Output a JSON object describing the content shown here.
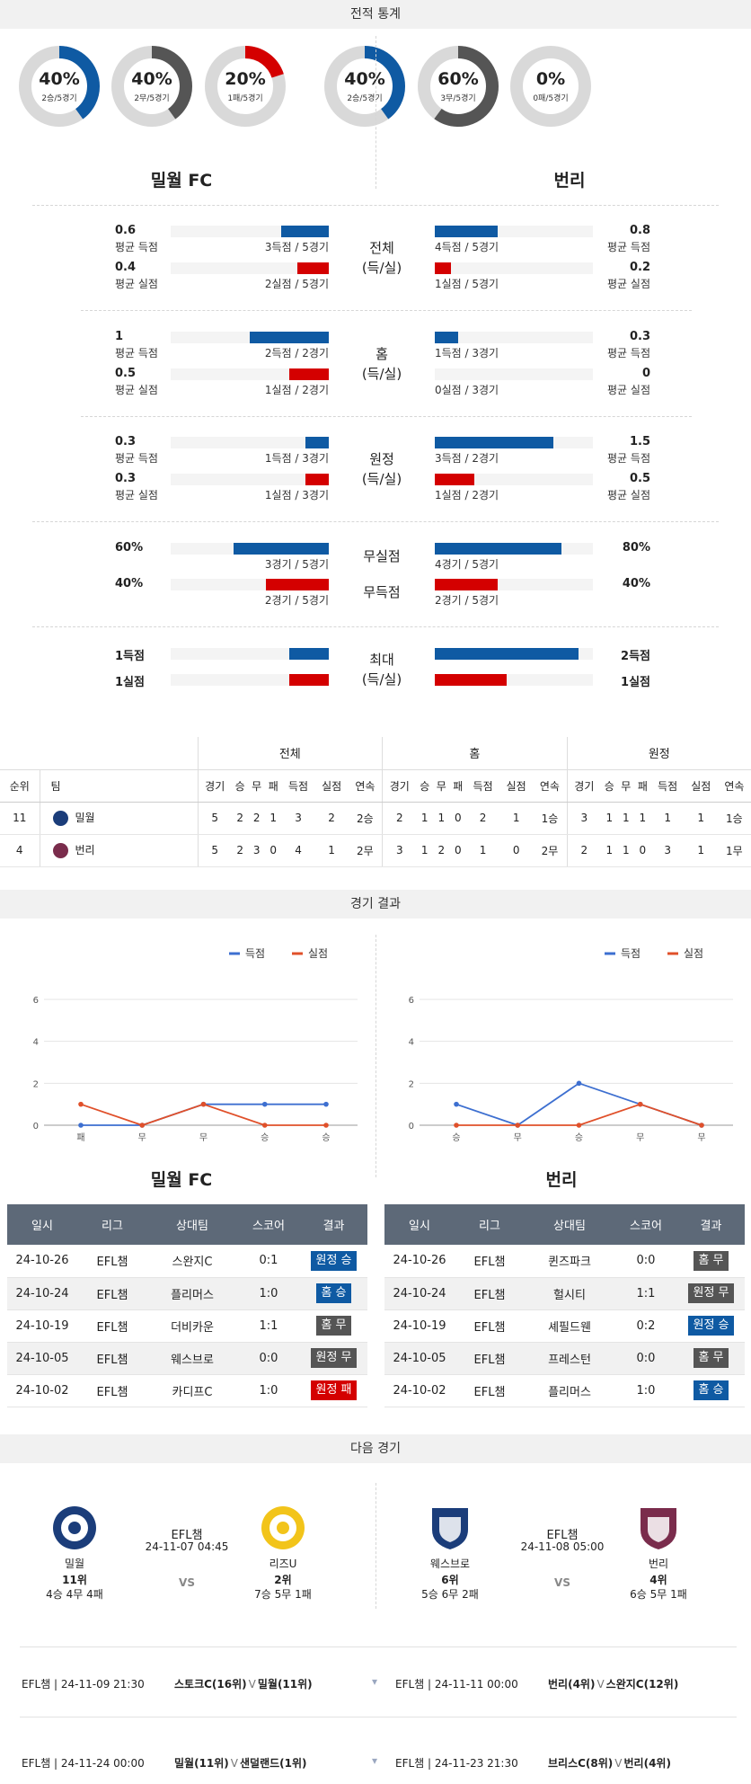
{
  "sections": {
    "stats": "전적 통계",
    "results": "경기 결과",
    "next": "다음 경기"
  },
  "donuts": [
    {
      "pct": "40%",
      "sub": "2승/5경기",
      "value": 0.4,
      "color": "#0f5aa3"
    },
    {
      "pct": "40%",
      "sub": "2무/5경기",
      "value": 0.4,
      "color": "#555555"
    },
    {
      "pct": "20%",
      "sub": "1패/5경기",
      "value": 0.2,
      "color": "#d40000"
    },
    {
      "pct": "40%",
      "sub": "2승/5경기",
      "value": 0.4,
      "color": "#0f5aa3"
    },
    {
      "pct": "60%",
      "sub": "3무/5경기",
      "value": 0.6,
      "color": "#555555"
    },
    {
      "pct": "0%",
      "sub": "0패/5경기",
      "value": 0.0,
      "color": "#d40000"
    }
  ],
  "teams": {
    "home": "밀월 FC",
    "away": "번리"
  },
  "stat_groups": [
    {
      "label": "전체\n(득/실)",
      "rows": [
        {
          "left_num": "0.6",
          "left_lab": "평균 득점",
          "left_cnt": "3득점 / 5경기",
          "left_val": 0.6,
          "right_num": "0.8",
          "right_lab": "평균 득점",
          "right_cnt": "4득점 / 5경기",
          "right_val": 0.8,
          "color": "blue"
        },
        {
          "left_num": "0.4",
          "left_lab": "평균 실점",
          "left_cnt": "2실점 / 5경기",
          "left_val": 0.4,
          "right_num": "0.2",
          "right_lab": "평균 실점",
          "right_cnt": "1실점 / 5경기",
          "right_val": 0.2,
          "color": "red"
        }
      ]
    },
    {
      "label": "홈\n(득/실)",
      "rows": [
        {
          "left_num": "1",
          "left_lab": "평균 득점",
          "left_cnt": "2득점 / 2경기",
          "left_val": 1.0,
          "right_num": "0.3",
          "right_lab": "평균 득점",
          "right_cnt": "1득점 / 3경기",
          "right_val": 0.3,
          "color": "blue"
        },
        {
          "left_num": "0.5",
          "left_lab": "평균 실점",
          "left_cnt": "1실점 / 2경기",
          "left_val": 0.5,
          "right_num": "0",
          "right_lab": "평균 실점",
          "right_cnt": "0실점 / 3경기",
          "right_val": 0.0,
          "color": "red"
        }
      ]
    },
    {
      "label": "원정\n(득/실)",
      "rows": [
        {
          "left_num": "0.3",
          "left_lab": "평균 득점",
          "left_cnt": "1득점 / 3경기",
          "left_val": 0.3,
          "right_num": "1.5",
          "right_lab": "평균 득점",
          "right_cnt": "3득점 / 2경기",
          "right_val": 1.5,
          "color": "blue"
        },
        {
          "left_num": "0.3",
          "left_lab": "평균 실점",
          "left_cnt": "1실점 / 3경기",
          "left_val": 0.3,
          "right_num": "0.5",
          "right_lab": "평균 실점",
          "right_cnt": "1실점 / 2경기",
          "right_val": 0.5,
          "color": "red"
        }
      ]
    }
  ],
  "clean": {
    "rows": [
      {
        "label": "무실점",
        "left_num": "60%",
        "left_cnt": "3경기 / 5경기",
        "left_val": 0.6,
        "right_num": "80%",
        "right_cnt": "4경기 / 5경기",
        "right_val": 0.8,
        "color": "blue"
      },
      {
        "label": "무득점",
        "left_num": "40%",
        "left_cnt": "2경기 / 5경기",
        "left_val": 0.4,
        "right_num": "40%",
        "right_cnt": "2경기 / 5경기",
        "right_val": 0.4,
        "color": "red"
      }
    ]
  },
  "max": {
    "label": "최대\n(득/실)",
    "rows": [
      {
        "left_num": "1득점",
        "left_val": 1,
        "right_num": "2득점",
        "right_val": 2,
        "color": "blue"
      },
      {
        "left_num": "1실점",
        "left_val": 1,
        "right_num": "1실점",
        "right_val": 1,
        "color": "red"
      }
    ]
  },
  "standings": {
    "groups": [
      "전체",
      "홈",
      "원정"
    ],
    "rank_header": "순위",
    "team_header": "팀",
    "cols": [
      "경기",
      "승",
      "무",
      "패",
      "득점",
      "실점",
      "연속"
    ],
    "rows": [
      {
        "rank": "11",
        "team": "밀월",
        "icon_color": "#1b3d7a",
        "all": [
          "5",
          "2",
          "2",
          "1",
          "3",
          "2",
          "2승"
        ],
        "home": [
          "2",
          "1",
          "1",
          "0",
          "2",
          "1",
          "1승"
        ],
        "away": [
          "3",
          "1",
          "1",
          "1",
          "1",
          "1",
          "1승"
        ]
      },
      {
        "rank": "4",
        "team": "번리",
        "icon_color": "#7a2c4c",
        "all": [
          "5",
          "2",
          "3",
          "0",
          "4",
          "1",
          "2무"
        ],
        "home": [
          "3",
          "1",
          "2",
          "0",
          "1",
          "0",
          "2무"
        ],
        "away": [
          "2",
          "1",
          "1",
          "0",
          "3",
          "1",
          "1무"
        ]
      }
    ]
  },
  "chart_data": [
    {
      "type": "line",
      "categories": [
        "패",
        "무",
        "무",
        "승",
        "승"
      ],
      "series": [
        {
          "name": "득점",
          "values": [
            0,
            0,
            1,
            1,
            1
          ],
          "color": "#3d6fd0"
        },
        {
          "name": "실점",
          "values": [
            1,
            0,
            1,
            0,
            0
          ],
          "color": "#e0502a"
        }
      ],
      "yticks": [
        0,
        2,
        4,
        6
      ],
      "ylim": [
        0,
        6
      ],
      "legend": "top-right"
    },
    {
      "type": "line",
      "categories": [
        "승",
        "무",
        "승",
        "무",
        "무"
      ],
      "series": [
        {
          "name": "득점",
          "values": [
            1,
            0,
            2,
            1,
            0
          ],
          "color": "#3d6fd0"
        },
        {
          "name": "실점",
          "values": [
            0,
            0,
            0,
            1,
            0
          ],
          "color": "#e0502a"
        }
      ],
      "yticks": [
        0,
        2,
        4,
        6
      ],
      "ylim": [
        0,
        6
      ],
      "legend": "top-right"
    }
  ],
  "results": {
    "headers": [
      "일시",
      "리그",
      "상대팀",
      "스코어",
      "결과"
    ],
    "home": [
      {
        "date": "24-10-26",
        "league": "EFL챔",
        "opp": "스완지C",
        "score": "0:1",
        "result": "원정 승",
        "badge": "blue"
      },
      {
        "date": "24-10-24",
        "league": "EFL챔",
        "opp": "플리머스",
        "score": "1:0",
        "result": "홈 승",
        "badge": "blue"
      },
      {
        "date": "24-10-19",
        "league": "EFL챔",
        "opp": "더비카운",
        "score": "1:1",
        "result": "홈 무",
        "badge": "gray"
      },
      {
        "date": "24-10-05",
        "league": "EFL챔",
        "opp": "웨스브로",
        "score": "0:0",
        "result": "원정 무",
        "badge": "gray"
      },
      {
        "date": "24-10-02",
        "league": "EFL챔",
        "opp": "카디프C",
        "score": "1:0",
        "result": "원정 패",
        "badge": "red"
      }
    ],
    "away": [
      {
        "date": "24-10-26",
        "league": "EFL챔",
        "opp": "퀸즈파크",
        "score": "0:0",
        "result": "홈 무",
        "badge": "gray"
      },
      {
        "date": "24-10-24",
        "league": "EFL챔",
        "opp": "헐시티",
        "score": "1:1",
        "result": "원정 무",
        "badge": "gray"
      },
      {
        "date": "24-10-19",
        "league": "EFL챔",
        "opp": "셰필드웬",
        "score": "0:2",
        "result": "원정 승",
        "badge": "blue"
      },
      {
        "date": "24-10-05",
        "league": "EFL챔",
        "opp": "프레스턴",
        "score": "0:0",
        "result": "홈 무",
        "badge": "gray"
      },
      {
        "date": "24-10-02",
        "league": "EFL챔",
        "opp": "플리머스",
        "score": "1:0",
        "result": "홈 승",
        "badge": "blue"
      }
    ]
  },
  "next": [
    {
      "league": "EFL챔",
      "datetime": "24-11-07 04:45",
      "vs": "VS",
      "left": {
        "name": "밀월",
        "rank": "11위",
        "record": "4승 4무 4패",
        "crest": "#1b3d7a"
      },
      "right": {
        "name": "리즈U",
        "rank": "2위",
        "record": "7승 5무 1패",
        "crest": "#f2c41a"
      }
    },
    {
      "league": "EFL챔",
      "datetime": "24-11-08 05:00",
      "vs": "VS",
      "left": {
        "name": "웨스브로",
        "rank": "6위",
        "record": "5승 6무 2패",
        "crest": "#1b3d7a"
      },
      "right": {
        "name": "번리",
        "rank": "4위",
        "record": "6승 5무 1패",
        "crest": "#7a2c4c"
      }
    }
  ],
  "upcoming": [
    {
      "info": "EFL챔 | 24-11-09 21:30",
      "home": "스토크C(16위)",
      "v": "V",
      "away": "밀월(11위)"
    },
    {
      "info": "EFL챔 | 24-11-11 00:00",
      "home": "번리(4위)",
      "v": "V",
      "away": "스완지C(12위)"
    },
    {
      "info": "EFL챔 | 24-11-24 00:00",
      "home": "밀월(11위)",
      "v": "V",
      "away": "샌덜랜드(1위)"
    },
    {
      "info": "EFL챔 | 24-11-23 21:30",
      "home": "브리스C(8위)",
      "v": "V",
      "away": "번리(4위)"
    }
  ]
}
